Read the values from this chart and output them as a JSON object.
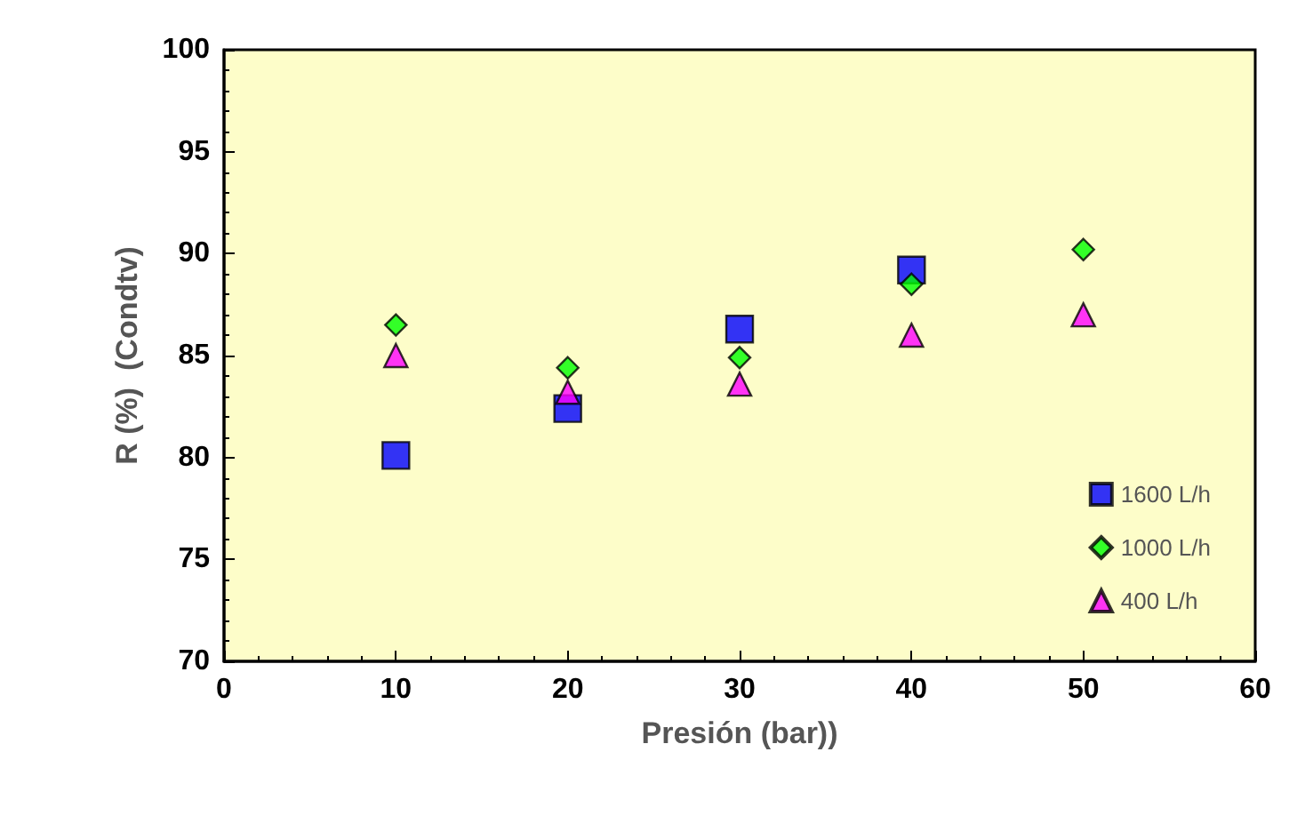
{
  "chart_data": {
    "type": "scatter",
    "xlabel": "Presión (bar))",
    "ylabel": "R (%)  (Condtv)",
    "xlim": [
      0,
      60
    ],
    "xticks": [
      0,
      10,
      20,
      30,
      40,
      50,
      60
    ],
    "ylim": [
      70,
      100
    ],
    "yticks": [
      70,
      75,
      80,
      85,
      90,
      95,
      100
    ],
    "grid": false,
    "legend": "bottom right",
    "series": [
      {
        "name": "1600 L/h",
        "color": "#0000ff",
        "marker": "square",
        "x": [
          10,
          20,
          30,
          40
        ],
        "values": [
          80.1,
          82.4,
          86.3,
          89.2
        ]
      },
      {
        "name": "1000 L/h",
        "color": "#00ff00",
        "marker": "diamond",
        "x": [
          10,
          20,
          30,
          40,
          50
        ],
        "values": [
          86.5,
          84.4,
          84.9,
          88.5,
          90.2
        ]
      },
      {
        "name": "400 L/h",
        "color": "#ff00ff",
        "marker": "triangle",
        "x": [
          10,
          20,
          30,
          40,
          50
        ],
        "values": [
          85.0,
          83.2,
          83.6,
          86.0,
          87.0
        ]
      }
    ]
  }
}
